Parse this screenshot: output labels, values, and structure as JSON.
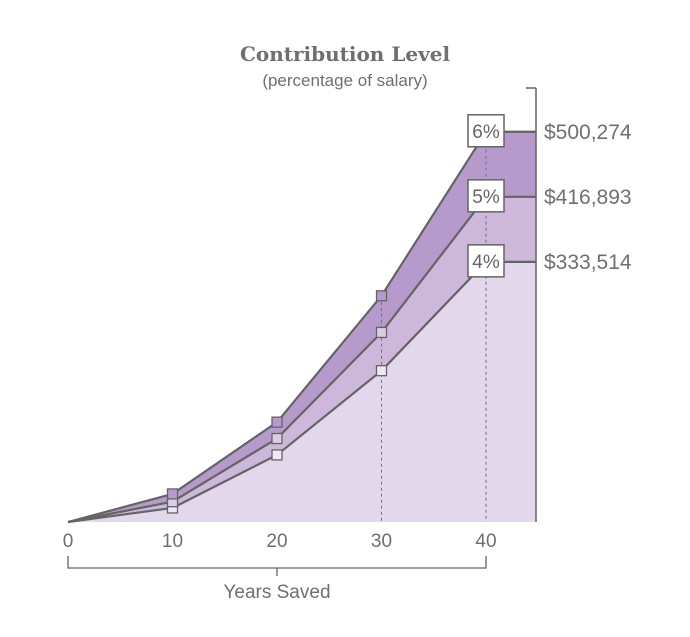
{
  "chart_data": {
    "type": "area",
    "title": "Contribution Level",
    "subtitle": "(percentage of salary)",
    "xlabel": "Years Saved",
    "ylabel": "",
    "x": [
      0,
      10,
      20,
      30,
      40
    ],
    "xlim": [
      0,
      45
    ],
    "ylim": [
      0,
      620000
    ],
    "series": [
      {
        "name": "4%",
        "values": [
          0,
          18000,
          86000,
          194000,
          333514
        ],
        "end_label": "$333,514"
      },
      {
        "name": "5%",
        "values": [
          0,
          26000,
          107000,
          243000,
          416893
        ],
        "end_label": "$416,893"
      },
      {
        "name": "6%",
        "values": [
          0,
          36000,
          128000,
          290000,
          500274
        ],
        "end_label": "$500,274"
      }
    ],
    "colors": {
      "fill_4": "#e3d8eb",
      "fill_5": "#cdb8dc",
      "fill_6": "#b69acb",
      "line": "#646464",
      "marker_6": "#b69acb",
      "marker_5": "#dccde7",
      "marker_4": "#efe8f4"
    },
    "grid": false,
    "legend": "none"
  }
}
